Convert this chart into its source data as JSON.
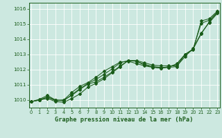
{
  "title": "Graphe pression niveau de la mer (hPa)",
  "bg_color": "#cce8e0",
  "grid_color": "#b8d8d0",
  "line_color": "#1a5c1a",
  "ylim": [
    1009.5,
    1016.4
  ],
  "xlim": [
    -0.3,
    23.3
  ],
  "yticks": [
    1010,
    1011,
    1012,
    1013,
    1014,
    1015,
    1016
  ],
  "xticks": [
    0,
    1,
    2,
    3,
    4,
    5,
    6,
    7,
    8,
    9,
    10,
    11,
    12,
    13,
    14,
    15,
    16,
    17,
    18,
    19,
    20,
    21,
    22,
    23
  ],
  "series": [
    [
      1009.9,
      1010.0,
      1010.2,
      1009.95,
      1010.0,
      1010.3,
      1010.7,
      1011.05,
      1011.2,
      1011.5,
      1011.85,
      1012.25,
      1012.6,
      1012.55,
      1012.35,
      1012.2,
      1012.15,
      1012.15,
      1012.2,
      1013.0,
      1013.35,
      1014.35,
      1015.15,
      1015.75
    ],
    [
      1009.9,
      1010.0,
      1010.2,
      1010.0,
      1009.95,
      1010.35,
      1010.75,
      1011.1,
      1011.35,
      1011.7,
      1012.05,
      1012.45,
      1012.6,
      1012.55,
      1012.3,
      1012.2,
      1012.1,
      1012.15,
      1012.4,
      1013.0,
      1013.35,
      1015.05,
      1015.25,
      1015.8
    ],
    [
      1009.9,
      1010.05,
      1010.3,
      1010.0,
      1010.0,
      1010.5,
      1010.9,
      1011.15,
      1011.5,
      1011.9,
      1012.2,
      1012.5,
      1012.55,
      1012.4,
      1012.25,
      1012.15,
      1012.1,
      1012.2,
      1012.35,
      1013.0,
      1013.3,
      1015.2,
      1015.35,
      1015.85
    ],
    [
      1009.9,
      1010.0,
      1010.1,
      1009.9,
      1009.85,
      1010.1,
      1010.4,
      1010.85,
      1011.1,
      1011.4,
      1011.8,
      1012.2,
      1012.6,
      1012.6,
      1012.45,
      1012.3,
      1012.25,
      1012.25,
      1012.25,
      1012.85,
      1013.4,
      1014.4,
      1015.1,
      1015.7
    ]
  ]
}
